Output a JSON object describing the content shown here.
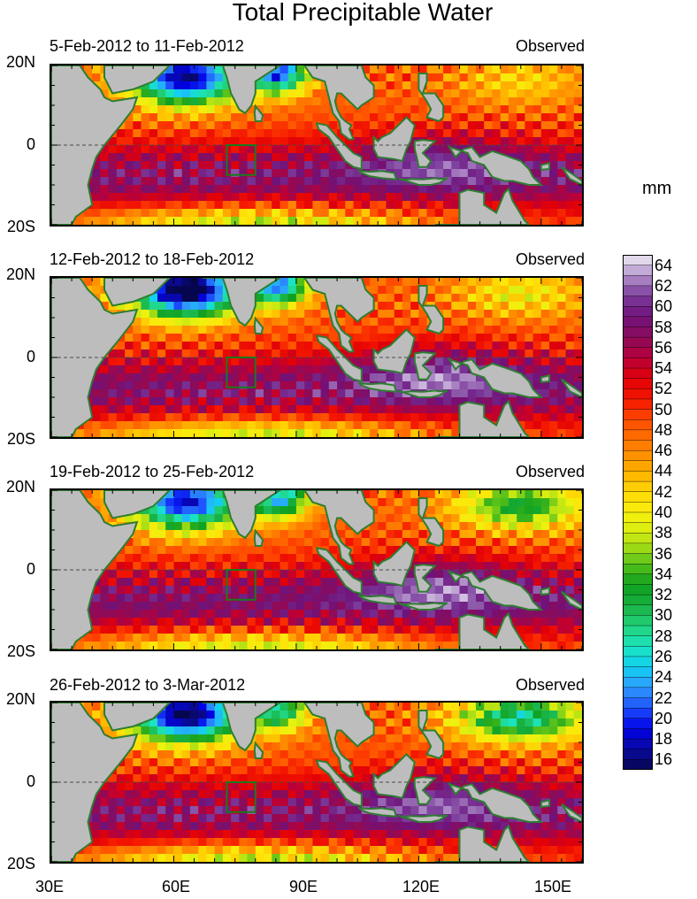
{
  "title": "Total Precipitable Water",
  "unit": "mm",
  "panels": [
    {
      "period": "5-Feb-2012 to 11-Feb-2012",
      "tag": "Observed"
    },
    {
      "period": "12-Feb-2012 to 18-Feb-2012",
      "tag": "Observed"
    },
    {
      "period": "19-Feb-2012 to 25-Feb-2012",
      "tag": "Observed"
    },
    {
      "period": "26-Feb-2012 to 3-Mar-2012",
      "tag": "Observed"
    }
  ],
  "lat_labels": [
    "20N",
    "0",
    "20S"
  ],
  "lon_labels": [
    "30E",
    "60E",
    "90E",
    "120E",
    "150E"
  ],
  "map_extent": {
    "lon_min": 30,
    "lon_max": 160,
    "lat_min": -20,
    "lat_max": 20
  },
  "colorbar": {
    "labels": [
      "64",
      "62",
      "60",
      "58",
      "56",
      "54",
      "52",
      "50",
      "48",
      "46",
      "44",
      "42",
      "40",
      "38",
      "36",
      "34",
      "32",
      "30",
      "28",
      "26",
      "24",
      "22",
      "20",
      "18",
      "16"
    ],
    "min": 15,
    "max": 65,
    "step": 1
  },
  "colors": {
    "land": "#bdbdbd",
    "coastline": "#2e7d32",
    "box": "#1b7a1b",
    "equator": "#4a4a4a"
  }
}
